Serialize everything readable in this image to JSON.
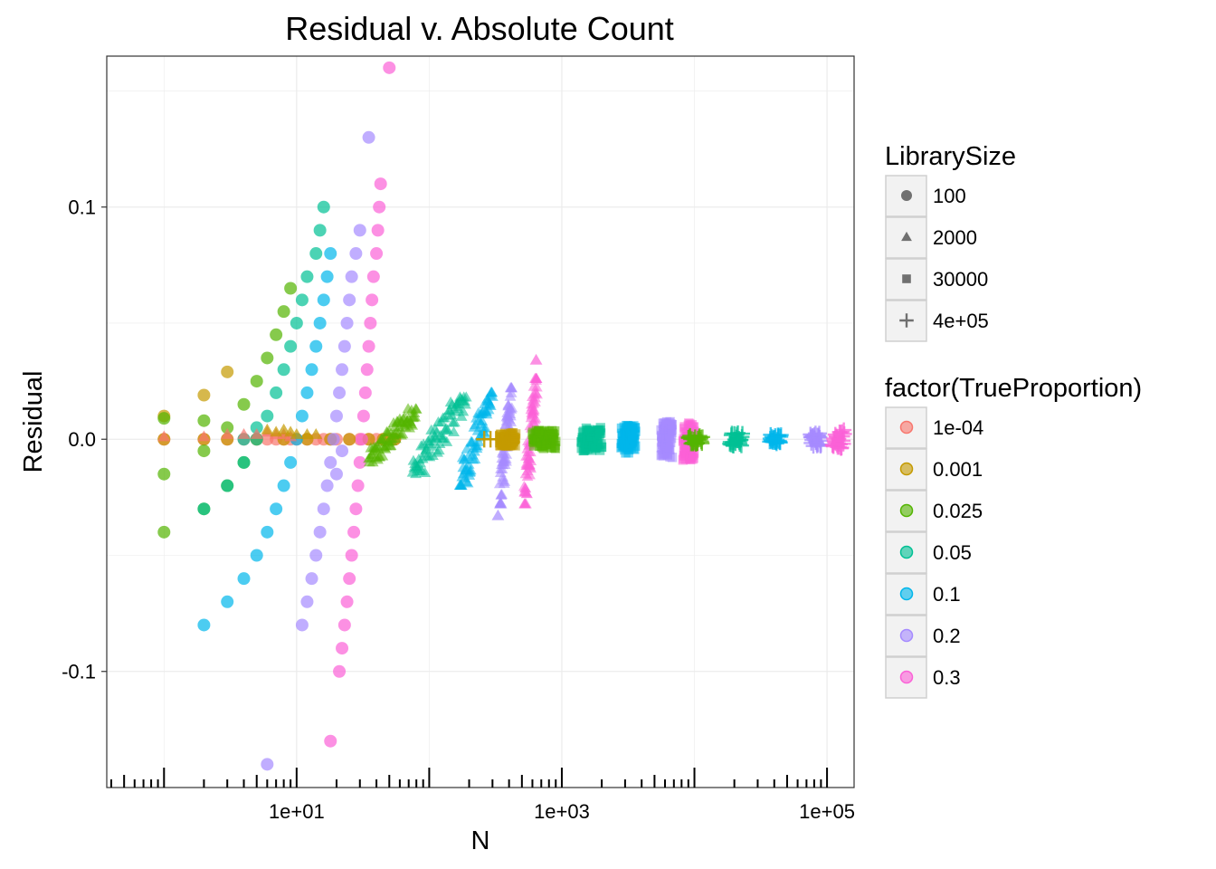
{
  "chart_data": {
    "type": "scatter",
    "title": "Residual v. Absolute Count",
    "xlabel": "N",
    "ylabel": "Residual",
    "x_scale": "log10",
    "xlim": [
      0.37,
      160000.0
    ],
    "ylim": [
      -0.15,
      0.165
    ],
    "x_ticks": [
      {
        "value": 10,
        "label": "1e+01"
      },
      {
        "value": 1000,
        "label": "1e+03"
      },
      {
        "value": 100000,
        "label": "1e+05"
      }
    ],
    "y_ticks": [
      {
        "value": 0.1,
        "label": "0.1"
      },
      {
        "value": 0.0,
        "label": "0.0"
      },
      {
        "value": -0.1,
        "label": "-0.1"
      }
    ],
    "grid": true,
    "legend_position": "right",
    "shape_legend": {
      "title": "LibrarySize",
      "entries": [
        {
          "label": "100",
          "shape": "circle"
        },
        {
          "label": "2000",
          "shape": "triangle"
        },
        {
          "label": "30000",
          "shape": "square"
        },
        {
          "label": "4e+05",
          "shape": "plus"
        }
      ]
    },
    "color_legend": {
      "title": "factor(TrueProportion)",
      "entries": [
        {
          "label": "1e-04",
          "color": "#F8766D"
        },
        {
          "label": "0.001",
          "color": "#C49A00"
        },
        {
          "label": "0.025",
          "color": "#53B400"
        },
        {
          "label": "0.05",
          "color": "#00C094"
        },
        {
          "label": "0.1",
          "color": "#00B6EB"
        },
        {
          "label": "0.2",
          "color": "#A58AFF"
        },
        {
          "label": "0.3",
          "color": "#FB61D7"
        }
      ]
    },
    "series": [
      {
        "library_size": "100",
        "true_proportion": "1e-04",
        "shape": "circle",
        "color": "#F8766D",
        "points": [
          [
            1,
            0
          ],
          [
            2,
            0
          ],
          [
            3,
            0
          ],
          [
            4,
            0
          ],
          [
            5,
            0
          ],
          [
            6,
            0
          ],
          [
            7,
            0
          ],
          [
            8,
            0
          ],
          [
            9,
            0
          ],
          [
            10,
            0
          ],
          [
            12,
            0
          ],
          [
            14,
            0
          ],
          [
            16,
            0
          ],
          [
            18,
            0
          ],
          [
            20,
            0
          ],
          [
            25,
            0
          ],
          [
            30,
            0
          ],
          [
            35,
            0
          ],
          [
            40,
            0
          ],
          [
            45,
            0
          ],
          [
            50,
            0
          ],
          [
            55,
            0
          ]
        ]
      },
      {
        "library_size": "100",
        "true_proportion": "0.001",
        "shape": "circle",
        "color": "#C49A00",
        "points": [
          [
            1,
            0.01
          ],
          [
            1,
            0
          ],
          [
            2,
            0.019
          ],
          [
            2,
            0
          ],
          [
            3,
            0.029
          ],
          [
            3,
            0
          ],
          [
            5,
            0
          ],
          [
            8,
            0
          ],
          [
            12,
            0
          ],
          [
            18,
            0
          ],
          [
            25,
            0
          ],
          [
            35,
            0
          ],
          [
            45,
            0
          ],
          [
            55,
            0
          ]
        ]
      },
      {
        "library_size": "100",
        "true_proportion": "0.025",
        "shape": "circle",
        "color": "#53B400",
        "points": [
          [
            1,
            0.009
          ],
          [
            1,
            -0.015
          ],
          [
            1,
            -0.04
          ],
          [
            2,
            0.008
          ],
          [
            2,
            -0.005
          ],
          [
            2,
            -0.03
          ],
          [
            3,
            0.005
          ],
          [
            3,
            -0.02
          ],
          [
            4,
            0.015
          ],
          [
            4,
            -0.01
          ],
          [
            5,
            0.025
          ],
          [
            6,
            0.035
          ],
          [
            7,
            0.045
          ],
          [
            8,
            0.055
          ],
          [
            9,
            0.065
          ]
        ]
      },
      {
        "library_size": "100",
        "true_proportion": "0.05",
        "shape": "circle",
        "color": "#00C094",
        "points": [
          [
            2,
            -0.03
          ],
          [
            3,
            -0.02
          ],
          [
            4,
            -0.01
          ],
          [
            5,
            0
          ],
          [
            6,
            0.01
          ],
          [
            7,
            0.02
          ],
          [
            8,
            0.03
          ],
          [
            9,
            0.04
          ],
          [
            10,
            0.05
          ],
          [
            11,
            0.06
          ],
          [
            12,
            0.07
          ],
          [
            14,
            0.08
          ],
          [
            15,
            0.09
          ],
          [
            16,
            0.1
          ],
          [
            4,
            0
          ],
          [
            5,
            0.005
          ]
        ]
      },
      {
        "library_size": "100",
        "true_proportion": "0.1",
        "shape": "circle",
        "color": "#00B6EB",
        "points": [
          [
            2,
            -0.08
          ],
          [
            3,
            -0.07
          ],
          [
            4,
            -0.06
          ],
          [
            5,
            -0.05
          ],
          [
            6,
            -0.04
          ],
          [
            7,
            -0.03
          ],
          [
            8,
            -0.02
          ],
          [
            9,
            -0.01
          ],
          [
            10,
            0
          ],
          [
            11,
            0.01
          ],
          [
            12,
            0.02
          ],
          [
            13,
            0.03
          ],
          [
            14,
            0.04
          ],
          [
            15,
            0.05
          ],
          [
            16,
            0.06
          ],
          [
            17,
            0.07
          ],
          [
            18,
            0.08
          ]
        ]
      },
      {
        "library_size": "100",
        "true_proportion": "0.2",
        "shape": "circle",
        "color": "#A58AFF",
        "points": [
          [
            6,
            -0.14
          ],
          [
            11,
            -0.08
          ],
          [
            12,
            -0.07
          ],
          [
            13,
            -0.06
          ],
          [
            14,
            -0.05
          ],
          [
            15,
            -0.04
          ],
          [
            16,
            -0.03
          ],
          [
            17,
            -0.02
          ],
          [
            18,
            -0.01
          ],
          [
            19,
            0
          ],
          [
            20,
            0.01
          ],
          [
            21,
            0.02
          ],
          [
            22,
            0.03
          ],
          [
            23,
            0.04
          ],
          [
            24,
            0.05
          ],
          [
            25,
            0.06
          ],
          [
            26,
            0.07
          ],
          [
            28,
            0.08
          ],
          [
            30,
            0.09
          ],
          [
            35,
            0.13
          ],
          [
            20,
            -0.015
          ],
          [
            22,
            -0.005
          ]
        ]
      },
      {
        "library_size": "100",
        "true_proportion": "0.3",
        "shape": "circle",
        "color": "#FB61D7",
        "points": [
          [
            18,
            -0.13
          ],
          [
            21,
            -0.1
          ],
          [
            22,
            -0.09
          ],
          [
            23,
            -0.08
          ],
          [
            24,
            -0.07
          ],
          [
            25,
            -0.06
          ],
          [
            26,
            -0.05
          ],
          [
            27,
            -0.04
          ],
          [
            28,
            -0.03
          ],
          [
            29,
            -0.02
          ],
          [
            30,
            -0.01
          ],
          [
            31,
            0
          ],
          [
            32,
            0.01
          ],
          [
            33,
            0.02
          ],
          [
            34,
            0.03
          ],
          [
            35,
            0.04
          ],
          [
            36,
            0.05
          ],
          [
            37,
            0.06
          ],
          [
            38,
            0.07
          ],
          [
            40,
            0.08
          ],
          [
            41,
            0.09
          ],
          [
            42,
            0.1
          ],
          [
            43,
            0.11
          ],
          [
            50,
            0.16
          ]
        ]
      },
      {
        "library_size": "2000",
        "true_proportion": "1e-04",
        "shape": "triangle",
        "color": "#F8766D",
        "points": [
          [
            1,
            0.001
          ],
          [
            2,
            0.001
          ],
          [
            3,
            0.002
          ],
          [
            4,
            0.002
          ],
          [
            5,
            0.002
          ],
          [
            6,
            0.003
          ],
          [
            7,
            0.002
          ],
          [
            8,
            0.002
          ],
          [
            9,
            0.001
          ]
        ]
      },
      {
        "library_size": "2000",
        "true_proportion": "0.001",
        "shape": "triangle",
        "color": "#C49A00",
        "points": [
          [
            6,
            0.004
          ],
          [
            7,
            0.003
          ],
          [
            8,
            0.004
          ],
          [
            9,
            0.003
          ],
          [
            10,
            0.002
          ],
          [
            12,
            0.002
          ],
          [
            14,
            0.002
          ]
        ]
      },
      {
        "library_size": "2000",
        "true_proportion": "0.025",
        "shape": "triangle",
        "color": "#53B400",
        "band": {
          "x_range": [
            35,
            80
          ],
          "y_range": [
            -0.01,
            0.013
          ]
        }
      },
      {
        "library_size": "2000",
        "true_proportion": "0.05",
        "shape": "triangle",
        "color": "#00C094",
        "band": {
          "x_range": [
            75,
            190
          ],
          "y_range": [
            -0.015,
            0.018
          ]
        }
      },
      {
        "library_size": "2000",
        "true_proportion": "0.1",
        "shape": "triangle",
        "color": "#00B6EB",
        "band": {
          "x_range": [
            170,
            300
          ],
          "y_range": [
            -0.02,
            0.02
          ]
        }
      },
      {
        "library_size": "2000",
        "true_proportion": "0.2",
        "shape": "triangle",
        "color": "#A58AFF",
        "band": {
          "x_range": [
            340,
            420
          ],
          "y_range": [
            -0.028,
            0.022
          ]
        },
        "points": [
          [
            330,
            -0.033
          ]
        ]
      },
      {
        "library_size": "2000",
        "true_proportion": "0.3",
        "shape": "triangle",
        "color": "#FB61D7",
        "band": {
          "x_range": [
            520,
            650
          ],
          "y_range": [
            -0.028,
            0.026
          ]
        },
        "points": [
          [
            640,
            0.034
          ]
        ]
      },
      {
        "library_size": "30000",
        "true_proportion": "0.001",
        "shape": "square",
        "color": "#C49A00",
        "band": {
          "x_range": [
            340,
            450
          ],
          "y_range": [
            -0.003,
            0.003
          ]
        }
      },
      {
        "library_size": "30000",
        "true_proportion": "0.025",
        "shape": "square",
        "color": "#53B400",
        "band": {
          "x_range": [
            600,
            900
          ],
          "y_range": [
            -0.004,
            0.004
          ]
        }
      },
      {
        "library_size": "30000",
        "true_proportion": "0.05",
        "shape": "square",
        "color": "#00C094",
        "band": {
          "x_range": [
            1400,
            2000
          ],
          "y_range": [
            -0.005,
            0.005
          ]
        }
      },
      {
        "library_size": "30000",
        "true_proportion": "0.1",
        "shape": "square",
        "color": "#00B6EB",
        "band": {
          "x_range": [
            2800,
            3600
          ],
          "y_range": [
            -0.006,
            0.006
          ]
        }
      },
      {
        "library_size": "30000",
        "true_proportion": "0.2",
        "shape": "square",
        "color": "#A58AFF",
        "band": {
          "x_range": [
            5600,
            6800
          ],
          "y_range": [
            -0.008,
            0.008
          ]
        }
      },
      {
        "library_size": "30000",
        "true_proportion": "0.3",
        "shape": "square",
        "color": "#FB61D7",
        "band": {
          "x_range": [
            8200,
            10000
          ],
          "y_range": [
            -0.009,
            0.008
          ]
        }
      },
      {
        "library_size": "4e+05",
        "true_proportion": "0.001",
        "shape": "plus",
        "color": "#C49A00",
        "points": [
          [
            260,
            0
          ],
          [
            290,
            0
          ],
          [
            320,
            0
          ]
        ]
      },
      {
        "library_size": "4e+05",
        "true_proportion": "0.025",
        "shape": "plus",
        "color": "#53B400",
        "band": {
          "x_range": [
            9000,
            11500
          ],
          "y_range": [
            -0.002,
            0.002
          ]
        }
      },
      {
        "library_size": "4e+05",
        "true_proportion": "0.05",
        "shape": "plus",
        "color": "#00C094",
        "band": {
          "x_range": [
            18500,
            23000
          ],
          "y_range": [
            -0.003,
            0.003
          ]
        }
      },
      {
        "library_size": "4e+05",
        "true_proportion": "0.1",
        "shape": "plus",
        "color": "#00B6EB",
        "band": {
          "x_range": [
            37000,
            45000
          ],
          "y_range": [
            -0.002,
            0.002
          ]
        }
      },
      {
        "library_size": "4e+05",
        "true_proportion": "0.2",
        "shape": "plus",
        "color": "#A58AFF",
        "band": {
          "x_range": [
            75000,
            90000
          ],
          "y_range": [
            -0.003,
            0.003
          ]
        }
      },
      {
        "library_size": "4e+05",
        "true_proportion": "0.3",
        "shape": "plus",
        "color": "#FB61D7",
        "band": {
          "x_range": [
            110000,
            135000
          ],
          "y_range": [
            -0.004,
            0.004
          ]
        }
      }
    ]
  }
}
